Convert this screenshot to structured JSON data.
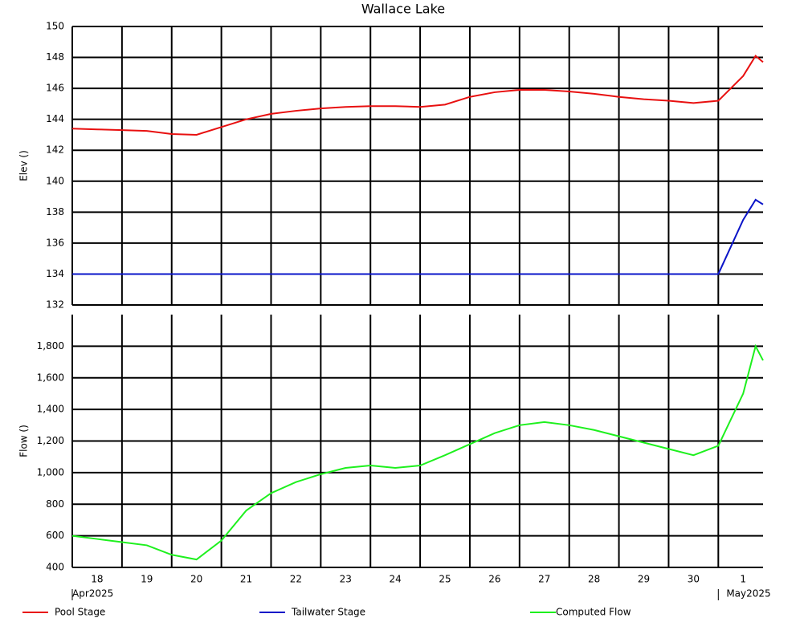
{
  "title": "Wallace Lake",
  "chart_data": [
    {
      "type": "line",
      "ylabel": "Elev ()",
      "ylim": [
        132,
        150
      ],
      "yticks": [
        132,
        134,
        136,
        138,
        140,
        142,
        144,
        146,
        148,
        150
      ],
      "xlim": [
        0,
        13.9
      ],
      "xgrid": [
        1,
        2,
        3,
        4,
        5,
        6,
        7,
        8,
        9,
        10,
        11,
        12,
        13
      ],
      "grid": true,
      "x": [
        0,
        0.5,
        1,
        1.5,
        2,
        2.5,
        3,
        3.5,
        4,
        4.5,
        5,
        5.5,
        6,
        6.5,
        7,
        7.5,
        8,
        8.5,
        9,
        9.5,
        10,
        10.5,
        11,
        11.5,
        12,
        12.5,
        13,
        13.5,
        13.75,
        13.9
      ],
      "series": [
        {
          "name": "Pool Stage",
          "color": "#e81010",
          "values": [
            143.4,
            143.35,
            143.3,
            143.25,
            143.05,
            143.0,
            143.5,
            144.0,
            144.35,
            144.55,
            144.7,
            144.8,
            144.85,
            144.85,
            144.8,
            144.95,
            145.45,
            145.75,
            145.9,
            145.9,
            145.8,
            145.65,
            145.45,
            145.3,
            145.2,
            145.05,
            145.2,
            146.8,
            148.1,
            147.7
          ]
        },
        {
          "name": "Tailwater Stage",
          "color": "#0a14c8",
          "values": [
            134,
            134,
            134,
            134,
            134,
            134,
            134,
            134,
            134,
            134,
            134,
            134,
            134,
            134,
            134,
            134,
            134,
            134,
            134,
            134,
            134,
            134,
            134,
            134,
            134,
            134,
            134,
            137.5,
            138.8,
            138.5
          ]
        }
      ]
    },
    {
      "type": "line",
      "ylabel": "Flow ()",
      "ylim": [
        400,
        2000
      ],
      "yticks": [
        400,
        600,
        800,
        {
          "value": 1000,
          "label": "1,000"
        },
        {
          "value": 1200,
          "label": "1,200"
        },
        {
          "value": 1400,
          "label": "1,400"
        },
        {
          "value": 1600,
          "label": "1,600"
        },
        {
          "value": 1800,
          "label": "1,800"
        }
      ],
      "xlim": [
        0,
        13.9
      ],
      "xgrid": [
        1,
        2,
        3,
        4,
        5,
        6,
        7,
        8,
        9,
        10,
        11,
        12,
        13
      ],
      "grid": true,
      "xticks": [
        {
          "value": 0.5,
          "label": "18"
        },
        {
          "value": 1.5,
          "label": "19"
        },
        {
          "value": 2.5,
          "label": "20"
        },
        {
          "value": 3.5,
          "label": "21"
        },
        {
          "value": 4.5,
          "label": "22"
        },
        {
          "value": 5.5,
          "label": "23"
        },
        {
          "value": 6.5,
          "label": "24"
        },
        {
          "value": 7.5,
          "label": "25"
        },
        {
          "value": 8.5,
          "label": "26"
        },
        {
          "value": 9.5,
          "label": "27"
        },
        {
          "value": 10.5,
          "label": "28"
        },
        {
          "value": 11.5,
          "label": "29"
        },
        {
          "value": 12.5,
          "label": "30"
        },
        {
          "value": 13.5,
          "label": "1"
        }
      ],
      "xperiods": [
        {
          "value": 0,
          "label": "Apr2025"
        },
        {
          "value": 13,
          "label": "May2025"
        }
      ],
      "x": [
        0,
        0.5,
        1,
        1.5,
        2,
        2.5,
        3,
        3.5,
        4,
        4.5,
        5,
        5.5,
        6,
        6.5,
        7,
        7.5,
        8,
        8.5,
        9,
        9.5,
        10,
        10.5,
        11,
        11.5,
        12,
        12.5,
        13,
        13.5,
        13.75,
        13.9
      ],
      "series": [
        {
          "name": "Computed Flow",
          "color": "#1ef01e",
          "values": [
            600,
            580,
            560,
            540,
            480,
            450,
            570,
            760,
            870,
            940,
            990,
            1030,
            1045,
            1030,
            1045,
            1110,
            1180,
            1250,
            1300,
            1320,
            1300,
            1270,
            1230,
            1190,
            1150,
            1110,
            1170,
            1500,
            1800,
            1710
          ]
        }
      ]
    }
  ]
}
